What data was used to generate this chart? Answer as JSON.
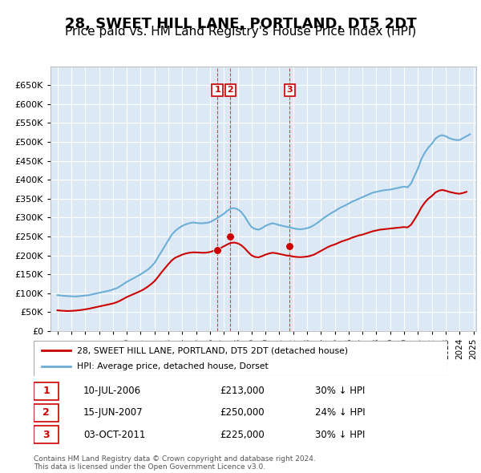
{
  "title": "28, SWEET HILL LANE, PORTLAND, DT5 2DT",
  "subtitle": "Price paid vs. HM Land Registry's House Price Index (HPI)",
  "title_fontsize": 13,
  "subtitle_fontsize": 11,
  "background_color": "#ffffff",
  "plot_background": "#dce9f5",
  "grid_color": "#ffffff",
  "hpi_color": "#6baed6",
  "price_color": "#cc0000",
  "marker_color": "#cc0000",
  "sale_marker_edge": "#cc0000",
  "transactions": [
    {
      "label": "1",
      "date_num": 2006.53,
      "price": 213000,
      "text": "10-JUL-2006",
      "price_str": "£213,000",
      "hpi_str": "30% ↓ HPI"
    },
    {
      "label": "2",
      "date_num": 2007.46,
      "price": 250000,
      "text": "15-JUN-2007",
      "price_str": "£250,000",
      "hpi_str": "24% ↓ HPI"
    },
    {
      "label": "3",
      "date_num": 2011.75,
      "price": 225000,
      "text": "03-OCT-2011",
      "price_str": "£225,000",
      "hpi_str": "30% ↓ HPI"
    }
  ],
  "ylim": [
    0,
    700000
  ],
  "yticks": [
    0,
    50000,
    100000,
    150000,
    200000,
    250000,
    300000,
    350000,
    400000,
    450000,
    500000,
    550000,
    600000,
    650000
  ],
  "ytick_labels": [
    "£0",
    "£50K",
    "£100K",
    "£150K",
    "£200K",
    "£250K",
    "£300K",
    "£350K",
    "£400K",
    "£450K",
    "£500K",
    "£550K",
    "£600K",
    "£650K"
  ],
  "xlim_start": 1994.5,
  "xlim_end": 2025.2,
  "legend_label_price": "28, SWEET HILL LANE, PORTLAND, DT5 2DT (detached house)",
  "legend_label_hpi": "HPI: Average price, detached house, Dorset",
  "footer": "Contains HM Land Registry data © Crown copyright and database right 2024.\nThis data is licensed under the Open Government Licence v3.0.",
  "hpi_data": [
    [
      1995.0,
      95000
    ],
    [
      1995.25,
      94000
    ],
    [
      1995.5,
      93000
    ],
    [
      1995.75,
      92500
    ],
    [
      1996.0,
      92000
    ],
    [
      1996.25,
      91500
    ],
    [
      1996.5,
      92000
    ],
    [
      1996.75,
      93000
    ],
    [
      1997.0,
      94000
    ],
    [
      1997.25,
      95000
    ],
    [
      1997.5,
      97000
    ],
    [
      1997.75,
      99000
    ],
    [
      1998.0,
      101000
    ],
    [
      1998.25,
      103000
    ],
    [
      1998.5,
      105000
    ],
    [
      1998.75,
      107000
    ],
    [
      1999.0,
      110000
    ],
    [
      1999.25,
      113000
    ],
    [
      1999.5,
      118000
    ],
    [
      1999.75,
      124000
    ],
    [
      2000.0,
      130000
    ],
    [
      2000.25,
      135000
    ],
    [
      2000.5,
      140000
    ],
    [
      2000.75,
      145000
    ],
    [
      2001.0,
      150000
    ],
    [
      2001.25,
      156000
    ],
    [
      2001.5,
      162000
    ],
    [
      2001.75,
      170000
    ],
    [
      2002.0,
      180000
    ],
    [
      2002.25,
      195000
    ],
    [
      2002.5,
      210000
    ],
    [
      2002.75,
      225000
    ],
    [
      2003.0,
      240000
    ],
    [
      2003.25,
      255000
    ],
    [
      2003.5,
      265000
    ],
    [
      2003.75,
      272000
    ],
    [
      2004.0,
      278000
    ],
    [
      2004.25,
      282000
    ],
    [
      2004.5,
      285000
    ],
    [
      2004.75,
      287000
    ],
    [
      2005.0,
      286000
    ],
    [
      2005.25,
      285000
    ],
    [
      2005.5,
      285000
    ],
    [
      2005.75,
      286000
    ],
    [
      2006.0,
      288000
    ],
    [
      2006.25,
      293000
    ],
    [
      2006.5,
      298000
    ],
    [
      2006.75,
      304000
    ],
    [
      2007.0,
      310000
    ],
    [
      2007.25,
      318000
    ],
    [
      2007.5,
      324000
    ],
    [
      2007.75,
      325000
    ],
    [
      2008.0,
      322000
    ],
    [
      2008.25,
      315000
    ],
    [
      2008.5,
      303000
    ],
    [
      2008.75,
      288000
    ],
    [
      2009.0,
      275000
    ],
    [
      2009.25,
      270000
    ],
    [
      2009.5,
      268000
    ],
    [
      2009.75,
      272000
    ],
    [
      2010.0,
      278000
    ],
    [
      2010.25,
      282000
    ],
    [
      2010.5,
      285000
    ],
    [
      2010.75,
      283000
    ],
    [
      2011.0,
      280000
    ],
    [
      2011.25,
      278000
    ],
    [
      2011.5,
      276000
    ],
    [
      2011.75,
      274000
    ],
    [
      2012.0,
      272000
    ],
    [
      2012.25,
      270000
    ],
    [
      2012.5,
      269000
    ],
    [
      2012.75,
      270000
    ],
    [
      2013.0,
      272000
    ],
    [
      2013.25,
      275000
    ],
    [
      2013.5,
      280000
    ],
    [
      2013.75,
      286000
    ],
    [
      2014.0,
      293000
    ],
    [
      2014.25,
      300000
    ],
    [
      2014.5,
      306000
    ],
    [
      2014.75,
      312000
    ],
    [
      2015.0,
      317000
    ],
    [
      2015.25,
      323000
    ],
    [
      2015.5,
      328000
    ],
    [
      2015.75,
      332000
    ],
    [
      2016.0,
      337000
    ],
    [
      2016.25,
      342000
    ],
    [
      2016.5,
      346000
    ],
    [
      2016.75,
      350000
    ],
    [
      2017.0,
      354000
    ],
    [
      2017.25,
      358000
    ],
    [
      2017.5,
      362000
    ],
    [
      2017.75,
      366000
    ],
    [
      2018.0,
      368000
    ],
    [
      2018.25,
      370000
    ],
    [
      2018.5,
      372000
    ],
    [
      2018.75,
      373000
    ],
    [
      2019.0,
      374000
    ],
    [
      2019.25,
      376000
    ],
    [
      2019.5,
      378000
    ],
    [
      2019.75,
      380000
    ],
    [
      2020.0,
      382000
    ],
    [
      2020.25,
      380000
    ],
    [
      2020.5,
      390000
    ],
    [
      2020.75,
      410000
    ],
    [
      2021.0,
      430000
    ],
    [
      2021.25,
      455000
    ],
    [
      2021.5,
      472000
    ],
    [
      2021.75,
      485000
    ],
    [
      2022.0,
      495000
    ],
    [
      2022.25,
      508000
    ],
    [
      2022.5,
      515000
    ],
    [
      2022.75,
      518000
    ],
    [
      2023.0,
      515000
    ],
    [
      2023.25,
      510000
    ],
    [
      2023.5,
      507000
    ],
    [
      2023.75,
      505000
    ],
    [
      2024.0,
      505000
    ],
    [
      2024.25,
      510000
    ],
    [
      2024.5,
      515000
    ],
    [
      2024.75,
      520000
    ]
  ],
  "price_index_data": [
    [
      1995.0,
      55000
    ],
    [
      1995.25,
      54000
    ],
    [
      1995.5,
      53500
    ],
    [
      1995.75,
      53000
    ],
    [
      1996.0,
      53500
    ],
    [
      1996.25,
      54000
    ],
    [
      1996.5,
      55000
    ],
    [
      1996.75,
      56000
    ],
    [
      1997.0,
      57500
    ],
    [
      1997.25,
      59000
    ],
    [
      1997.5,
      61000
    ],
    [
      1997.75,
      63000
    ],
    [
      1998.0,
      65000
    ],
    [
      1998.25,
      67000
    ],
    [
      1998.5,
      69000
    ],
    [
      1998.75,
      71000
    ],
    [
      1999.0,
      73000
    ],
    [
      1999.25,
      76000
    ],
    [
      1999.5,
      80000
    ],
    [
      1999.75,
      85000
    ],
    [
      2000.0,
      90000
    ],
    [
      2000.25,
      94000
    ],
    [
      2000.5,
      98000
    ],
    [
      2000.75,
      102000
    ],
    [
      2001.0,
      106000
    ],
    [
      2001.25,
      111000
    ],
    [
      2001.5,
      117000
    ],
    [
      2001.75,
      124000
    ],
    [
      2002.0,
      132000
    ],
    [
      2002.25,
      143000
    ],
    [
      2002.5,
      155000
    ],
    [
      2002.75,
      166000
    ],
    [
      2003.0,
      177000
    ],
    [
      2003.25,
      187000
    ],
    [
      2003.5,
      194000
    ],
    [
      2003.75,
      198000
    ],
    [
      2004.0,
      202000
    ],
    [
      2004.25,
      205000
    ],
    [
      2004.5,
      207000
    ],
    [
      2004.75,
      208000
    ],
    [
      2005.0,
      208000
    ],
    [
      2005.25,
      207500
    ],
    [
      2005.5,
      207000
    ],
    [
      2005.75,
      207500
    ],
    [
      2006.0,
      209000
    ],
    [
      2006.25,
      212000
    ],
    [
      2006.5,
      215000
    ],
    [
      2006.75,
      219000
    ],
    [
      2007.0,
      224000
    ],
    [
      2007.25,
      229000
    ],
    [
      2007.5,
      233000
    ],
    [
      2007.75,
      234000
    ],
    [
      2008.0,
      232000
    ],
    [
      2008.25,
      227000
    ],
    [
      2008.5,
      219000
    ],
    [
      2008.75,
      209000
    ],
    [
      2009.0,
      200000
    ],
    [
      2009.25,
      196000
    ],
    [
      2009.5,
      195000
    ],
    [
      2009.75,
      198000
    ],
    [
      2010.0,
      202000
    ],
    [
      2010.25,
      205000
    ],
    [
      2010.5,
      207000
    ],
    [
      2010.75,
      206000
    ],
    [
      2011.0,
      204000
    ],
    [
      2011.25,
      202000
    ],
    [
      2011.5,
      200000
    ],
    [
      2011.75,
      199000
    ],
    [
      2012.0,
      197000
    ],
    [
      2012.25,
      196000
    ],
    [
      2012.5,
      195500
    ],
    [
      2012.75,
      196000
    ],
    [
      2013.0,
      197000
    ],
    [
      2013.25,
      199000
    ],
    [
      2013.5,
      202000
    ],
    [
      2013.75,
      207000
    ],
    [
      2014.0,
      212000
    ],
    [
      2014.25,
      217000
    ],
    [
      2014.5,
      222000
    ],
    [
      2014.75,
      226000
    ],
    [
      2015.0,
      229000
    ],
    [
      2015.25,
      233000
    ],
    [
      2015.5,
      237000
    ],
    [
      2015.75,
      240000
    ],
    [
      2016.0,
      243000
    ],
    [
      2016.25,
      247000
    ],
    [
      2016.5,
      250000
    ],
    [
      2016.75,
      253000
    ],
    [
      2017.0,
      255000
    ],
    [
      2017.25,
      258000
    ],
    [
      2017.5,
      261000
    ],
    [
      2017.75,
      264000
    ],
    [
      2018.0,
      266000
    ],
    [
      2018.25,
      268000
    ],
    [
      2018.5,
      269000
    ],
    [
      2018.75,
      270000
    ],
    [
      2019.0,
      271000
    ],
    [
      2019.25,
      272000
    ],
    [
      2019.5,
      273000
    ],
    [
      2019.75,
      274000
    ],
    [
      2020.0,
      275000
    ],
    [
      2020.25,
      274000
    ],
    [
      2020.5,
      281000
    ],
    [
      2020.75,
      295000
    ],
    [
      2021.0,
      310000
    ],
    [
      2021.25,
      327000
    ],
    [
      2021.5,
      340000
    ],
    [
      2021.75,
      350000
    ],
    [
      2022.0,
      357000
    ],
    [
      2022.25,
      366000
    ],
    [
      2022.5,
      371000
    ],
    [
      2022.75,
      373000
    ],
    [
      2023.0,
      371000
    ],
    [
      2023.25,
      368000
    ],
    [
      2023.5,
      366000
    ],
    [
      2023.75,
      364000
    ],
    [
      2024.0,
      363000
    ],
    [
      2024.25,
      365000
    ],
    [
      2024.5,
      368000
    ]
  ]
}
